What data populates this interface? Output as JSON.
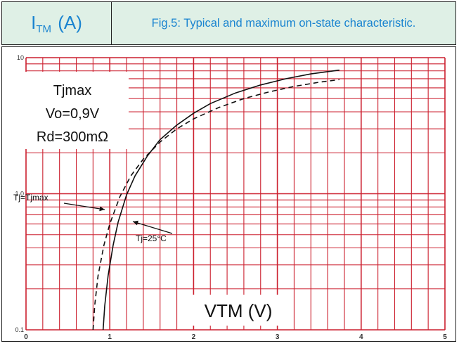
{
  "header": {
    "y_axis_symbol": "I",
    "y_axis_subscript": "TM",
    "y_axis_unit": "(A)",
    "figure_title": "Fig.5: Typical and maximum on-state characteristic."
  },
  "chart_data": {
    "type": "line",
    "title": "Fig.5: Typical and maximum on-state characteristic.",
    "xlabel": "VTM (V)",
    "ylabel": "ITM (A)",
    "xlim": [
      0,
      5
    ],
    "ylim": [
      0.1,
      10
    ],
    "yscale": "log",
    "grid": true,
    "x_ticks": [
      "0",
      "1",
      "2",
      "3",
      "4",
      "5"
    ],
    "y_ticks": [
      "0.1",
      "1.0",
      "10"
    ],
    "parameter_box": {
      "line1": "Tjmax",
      "line2": "Vo=0,9V",
      "line3": "Rd=300mΩ"
    },
    "annotations": [
      {
        "text": "Tj=Tjmax",
        "target_series": "Tj=Tjmax"
      },
      {
        "text": "Tj=25°C",
        "target_series": "Tj=25°C"
      }
    ],
    "series": [
      {
        "name": "Tj=25°C",
        "style": "solid",
        "x": [
          0.92,
          0.94,
          0.98,
          1.04,
          1.1,
          1.2,
          1.3,
          1.45,
          1.6,
          1.8,
          2.0,
          2.2,
          2.5,
          2.8,
          3.1,
          3.4,
          3.74
        ],
        "y": [
          0.1,
          0.15,
          0.25,
          0.42,
          0.62,
          0.98,
          1.35,
          1.9,
          2.5,
          3.2,
          3.9,
          4.6,
          5.5,
          6.3,
          7.0,
          7.6,
          8.1
        ]
      },
      {
        "name": "Tj=Tjmax",
        "style": "dashed",
        "x": [
          0.8,
          0.82,
          0.86,
          0.93,
          1.0,
          1.12,
          1.25,
          1.4,
          1.6,
          1.8,
          2.0,
          2.3,
          2.6,
          2.9,
          3.2,
          3.5,
          3.74
        ],
        "y": [
          0.1,
          0.15,
          0.25,
          0.42,
          0.6,
          0.95,
          1.35,
          1.8,
          2.4,
          3.0,
          3.55,
          4.3,
          5.0,
          5.6,
          6.15,
          6.6,
          6.9
        ]
      }
    ],
    "colors": {
      "grid": "#cc1f2e",
      "curve": "#111111",
      "title_text": "#1a84d0",
      "header_bg": "#dff0e6"
    }
  }
}
